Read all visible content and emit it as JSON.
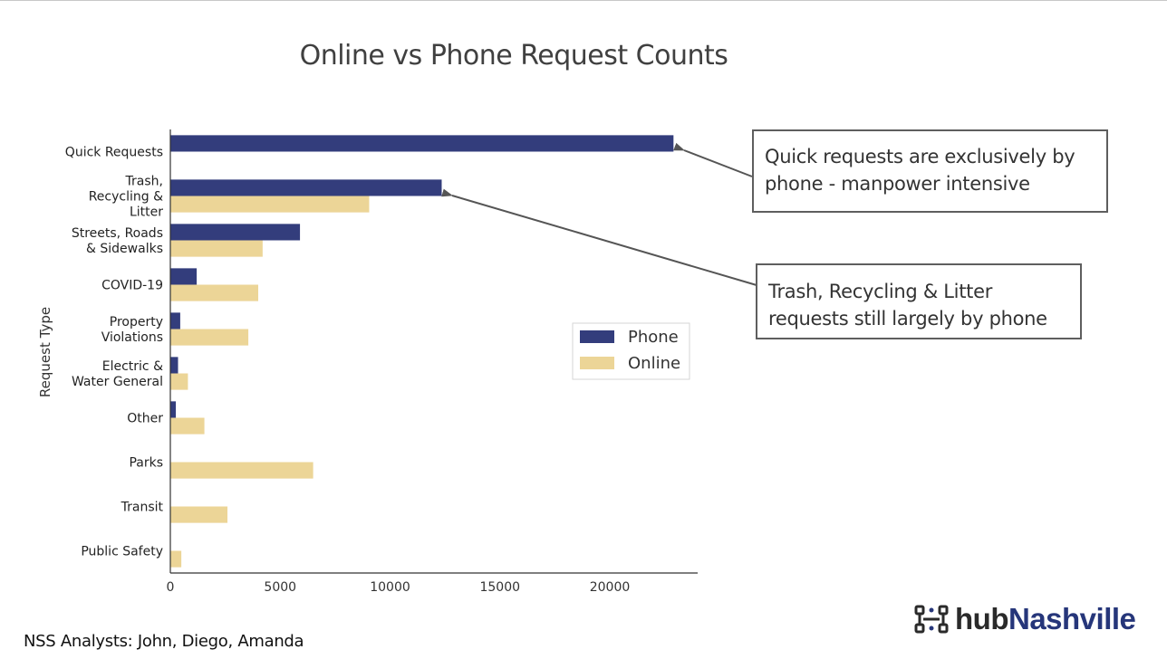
{
  "slide": {
    "title": "Online vs Phone Request Counts",
    "footer": "NSS Analysts: John, Diego, Amanda",
    "logo": {
      "hub": "hub",
      "city": "Nashville",
      "icon": "network-grid-icon"
    }
  },
  "callouts": [
    {
      "lines": [
        "Quick requests are exclusively by",
        "phone - manpower intensive"
      ]
    },
    {
      "lines": [
        "Trash, Recycling & Litter",
        "requests still largely by phone"
      ]
    }
  ],
  "chart_data": {
    "type": "bar",
    "orientation": "horizontal",
    "ylabel": "Request Type",
    "xlabel": "",
    "xlim": [
      0,
      24000
    ],
    "xticks": [
      0,
      5000,
      10000,
      15000,
      20000
    ],
    "grid": false,
    "legend_position": "right-center",
    "categories": [
      [
        "Quick Requests"
      ],
      [
        "Trash,",
        "Recycling &",
        "Litter"
      ],
      [
        "Streets, Roads",
        "& Sidewalks"
      ],
      [
        "COVID-19"
      ],
      [
        "Property",
        "Violations"
      ],
      [
        "Electric &",
        "Water General"
      ],
      [
        "Other"
      ],
      [
        "Parks"
      ],
      [
        "Transit"
      ],
      [
        "Public Safety"
      ]
    ],
    "series": [
      {
        "name": "Phone",
        "color": "#333d7c",
        "values": [
          22900,
          12350,
          5900,
          1200,
          450,
          350,
          250,
          0,
          0,
          0
        ]
      },
      {
        "name": "Online",
        "color": "#ecd597",
        "values": [
          0,
          9050,
          4200,
          4000,
          3550,
          800,
          1550,
          6500,
          2600,
          500
        ]
      }
    ]
  }
}
